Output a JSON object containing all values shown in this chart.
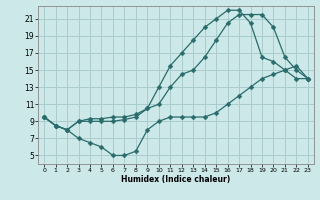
{
  "xlabel": "Humidex (Indice chaleur)",
  "background_color": "#cce8e8",
  "grid_color": "#aacccc",
  "line_color": "#2a6b6b",
  "xlim": [
    -0.5,
    23.5
  ],
  "ylim": [
    4.0,
    22.5
  ],
  "xticks": [
    0,
    1,
    2,
    3,
    4,
    5,
    6,
    7,
    8,
    9,
    10,
    11,
    12,
    13,
    14,
    15,
    16,
    17,
    18,
    19,
    20,
    21,
    22,
    23
  ],
  "yticks": [
    5,
    7,
    9,
    11,
    13,
    15,
    17,
    19,
    21
  ],
  "line1_x": [
    0,
    1,
    2,
    3,
    4,
    5,
    6,
    7,
    8,
    9,
    10,
    11,
    12,
    13,
    14,
    15,
    16,
    17,
    18,
    19,
    20,
    21,
    22,
    23
  ],
  "line1_y": [
    9.5,
    8.5,
    8.0,
    9.0,
    9.3,
    9.3,
    9.5,
    9.5,
    9.8,
    10.5,
    11.0,
    13.0,
    14.5,
    15.0,
    16.5,
    18.5,
    20.5,
    21.5,
    21.5,
    21.5,
    20.0,
    16.5,
    15.0,
    14.0
  ],
  "line2_x": [
    0,
    1,
    2,
    3,
    4,
    5,
    6,
    7,
    8,
    9,
    10,
    11,
    12,
    13,
    14,
    15,
    16,
    17,
    18,
    19,
    20,
    21,
    22,
    23
  ],
  "line2_y": [
    9.5,
    8.5,
    8.0,
    9.0,
    9.0,
    9.0,
    9.0,
    9.2,
    9.5,
    10.5,
    13.0,
    15.5,
    17.0,
    18.5,
    20.0,
    21.0,
    22.0,
    22.0,
    20.5,
    16.5,
    16.0,
    15.0,
    14.0,
    14.0
  ],
  "line3_x": [
    0,
    1,
    2,
    3,
    4,
    5,
    6,
    7,
    8,
    9,
    10,
    11,
    12,
    13,
    14,
    15,
    16,
    17,
    18,
    19,
    20,
    21,
    22,
    23
  ],
  "line3_y": [
    9.5,
    8.5,
    8.0,
    7.0,
    6.5,
    6.0,
    5.0,
    5.0,
    5.5,
    8.0,
    9.0,
    9.5,
    9.5,
    9.5,
    9.5,
    10.0,
    11.0,
    12.0,
    13.0,
    14.0,
    14.5,
    15.0,
    15.5,
    14.0
  ]
}
